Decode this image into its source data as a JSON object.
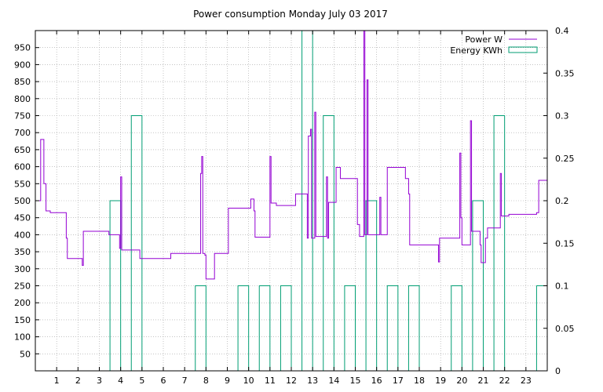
{
  "chart_data": {
    "type": "line",
    "title": "Power consumption Monday July 03 2017",
    "xlabel": "",
    "ylabel": "",
    "y2label": "",
    "x_range": [
      0,
      24
    ],
    "ylim": [
      0,
      1000
    ],
    "y2lim": [
      0,
      0.4
    ],
    "x_ticks": [
      "1",
      "2",
      "3",
      "4",
      "5",
      "6",
      "7",
      "8",
      "9",
      "10",
      "11",
      "12",
      "13",
      "14",
      "15",
      "16",
      "17",
      "18",
      "19",
      "20",
      "21",
      "22",
      "23"
    ],
    "y_ticks": [
      "50",
      "100",
      "150",
      "200",
      "250",
      "300",
      "350",
      "400",
      "450",
      "500",
      "550",
      "600",
      "650",
      "700",
      "750",
      "800",
      "850",
      "900",
      "950"
    ],
    "y2_ticks": [
      "0",
      "0.05",
      "0.1",
      "0.15",
      "0.2",
      "0.25",
      "0.3",
      "0.35",
      "0.4"
    ],
    "grid": true,
    "legend_position": "top-right",
    "colors": {
      "power": "#9400d3",
      "energy": "#009e73"
    },
    "series": [
      {
        "name": "Power W",
        "axis": "y",
        "style": "steps",
        "points": [
          [
            0,
            500
          ],
          [
            0.25,
            500
          ],
          [
            0.25,
            680
          ],
          [
            0.4,
            680
          ],
          [
            0.4,
            550
          ],
          [
            0.5,
            550
          ],
          [
            0.5,
            470
          ],
          [
            0.7,
            470
          ],
          [
            0.7,
            465
          ],
          [
            1.45,
            465
          ],
          [
            1.45,
            390
          ],
          [
            1.5,
            390
          ],
          [
            1.5,
            330
          ],
          [
            2.2,
            330
          ],
          [
            2.2,
            310
          ],
          [
            2.25,
            310
          ],
          [
            2.25,
            410
          ],
          [
            3.45,
            410
          ],
          [
            3.45,
            400
          ],
          [
            3.95,
            400
          ],
          [
            3.95,
            360
          ],
          [
            4.0,
            360
          ],
          [
            4.0,
            570
          ],
          [
            4.05,
            570
          ],
          [
            4.05,
            355
          ],
          [
            4.9,
            355
          ],
          [
            4.9,
            330
          ],
          [
            6.35,
            330
          ],
          [
            6.35,
            345
          ],
          [
            7.75,
            345
          ],
          [
            7.75,
            580
          ],
          [
            7.8,
            580
          ],
          [
            7.8,
            630
          ],
          [
            7.85,
            630
          ],
          [
            7.85,
            345
          ],
          [
            7.95,
            345
          ],
          [
            7.95,
            340
          ],
          [
            8.0,
            340
          ],
          [
            8.0,
            270
          ],
          [
            8.4,
            270
          ],
          [
            8.4,
            345
          ],
          [
            9.05,
            345
          ],
          [
            9.05,
            478
          ],
          [
            10.1,
            478
          ],
          [
            10.1,
            505
          ],
          [
            10.25,
            505
          ],
          [
            10.25,
            470
          ],
          [
            10.3,
            470
          ],
          [
            10.3,
            393
          ],
          [
            11.0,
            393
          ],
          [
            11.0,
            630
          ],
          [
            11.05,
            630
          ],
          [
            11.05,
            493
          ],
          [
            11.3,
            493
          ],
          [
            11.3,
            486
          ],
          [
            12.2,
            486
          ],
          [
            12.2,
            520
          ],
          [
            12.75,
            520
          ],
          [
            12.75,
            390
          ],
          [
            12.8,
            390
          ],
          [
            12.8,
            690
          ],
          [
            12.9,
            690
          ],
          [
            12.9,
            710
          ],
          [
            12.95,
            710
          ],
          [
            12.95,
            390
          ],
          [
            13.1,
            390
          ],
          [
            13.1,
            760
          ],
          [
            13.15,
            760
          ],
          [
            13.15,
            395
          ],
          [
            13.65,
            395
          ],
          [
            13.65,
            570
          ],
          [
            13.7,
            570
          ],
          [
            13.7,
            390
          ],
          [
            13.75,
            390
          ],
          [
            13.75,
            495
          ],
          [
            14.1,
            495
          ],
          [
            14.1,
            598
          ],
          [
            14.3,
            598
          ],
          [
            14.3,
            565
          ],
          [
            15.1,
            565
          ],
          [
            15.1,
            430
          ],
          [
            15.2,
            430
          ],
          [
            15.2,
            395
          ],
          [
            15.4,
            395
          ],
          [
            15.4,
            1000
          ],
          [
            15.45,
            1000
          ],
          [
            15.45,
            400
          ],
          [
            15.55,
            400
          ],
          [
            15.55,
            855
          ],
          [
            15.6,
            855
          ],
          [
            15.6,
            400
          ],
          [
            16.15,
            400
          ],
          [
            16.15,
            510
          ],
          [
            16.2,
            510
          ],
          [
            16.2,
            400
          ],
          [
            16.5,
            400
          ],
          [
            16.5,
            598
          ],
          [
            17.35,
            598
          ],
          [
            17.35,
            565
          ],
          [
            17.5,
            565
          ],
          [
            17.5,
            520
          ],
          [
            17.55,
            520
          ],
          [
            17.55,
            370
          ],
          [
            18.9,
            370
          ],
          [
            18.9,
            320
          ],
          [
            18.95,
            320
          ],
          [
            18.95,
            390
          ],
          [
            19.9,
            390
          ],
          [
            19.9,
            640
          ],
          [
            19.95,
            640
          ],
          [
            19.95,
            450
          ],
          [
            20.0,
            450
          ],
          [
            20.0,
            370
          ],
          [
            20.4,
            370
          ],
          [
            20.4,
            735
          ],
          [
            20.45,
            735
          ],
          [
            20.45,
            410
          ],
          [
            20.85,
            410
          ],
          [
            20.85,
            370
          ],
          [
            20.9,
            370
          ],
          [
            20.9,
            318
          ],
          [
            21.1,
            318
          ],
          [
            21.1,
            390
          ],
          [
            21.2,
            390
          ],
          [
            21.2,
            420
          ],
          [
            21.8,
            420
          ],
          [
            21.8,
            580
          ],
          [
            21.85,
            580
          ],
          [
            21.85,
            455
          ],
          [
            22.2,
            455
          ],
          [
            22.2,
            460
          ],
          [
            23.5,
            460
          ],
          [
            23.5,
            465
          ],
          [
            23.6,
            465
          ],
          [
            23.6,
            560
          ],
          [
            24,
            560
          ]
        ]
      },
      {
        "name": "Energy KWh",
        "axis": "y2",
        "style": "histeps",
        "points": [
          [
            0,
            0
          ],
          [
            1,
            0
          ],
          [
            2,
            0
          ],
          [
            3,
            0.2
          ],
          [
            4,
            0.3
          ],
          [
            5,
            0
          ],
          [
            6,
            0
          ],
          [
            7,
            0.1
          ],
          [
            8,
            0
          ],
          [
            9,
            0.1
          ],
          [
            10,
            0.1
          ],
          [
            11,
            0.1
          ],
          [
            12,
            0.4
          ],
          [
            13,
            0.3
          ],
          [
            14,
            0.1
          ],
          [
            15,
            0.2
          ],
          [
            16,
            0.1
          ],
          [
            17,
            0.1
          ],
          [
            18,
            0
          ],
          [
            19,
            0.1
          ],
          [
            20,
            0.2
          ],
          [
            21,
            0.3
          ],
          [
            22,
            0
          ],
          [
            23,
            0.1
          ]
        ]
      }
    ]
  }
}
